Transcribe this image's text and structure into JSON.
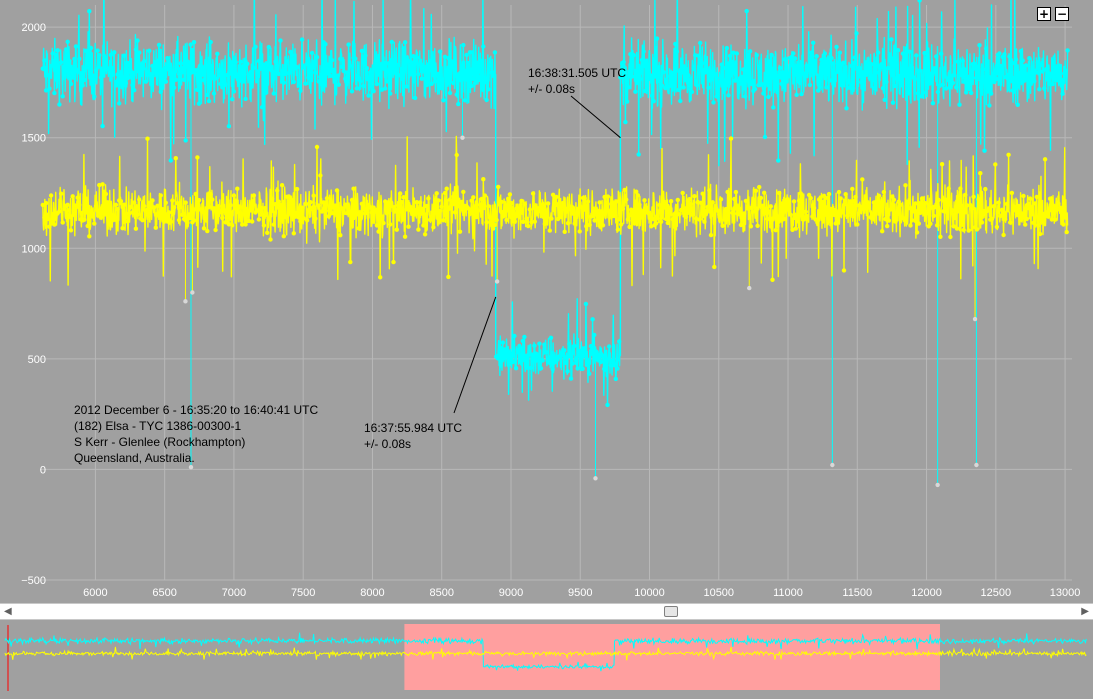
{
  "chart_data": {
    "type": "line",
    "x_ticks": [
      "6000",
      "6500",
      "7000",
      "7500",
      "8000",
      "8500",
      "9000",
      "9500",
      "10000",
      "10500",
      "11000",
      "11500",
      "12000",
      "12500",
      "13000"
    ],
    "y_ticks": [
      "2000",
      "1500",
      "1000",
      "500",
      "0",
      "−500"
    ],
    "xlim": [
      5600,
      13050
    ],
    "ylim": [
      -500,
      2100
    ],
    "series": [
      {
        "color": "#00ffff",
        "segments": [
          {
            "x_range": [
              5620,
              8890
            ],
            "mean": 1800,
            "spread": 200
          },
          {
            "x_range": [
              8890,
              9790
            ],
            "mean": 510,
            "spread": 130
          },
          {
            "x_range": [
              9790,
              13020
            ],
            "mean": 1790,
            "spread": 200
          }
        ],
        "dips": [
          [
            6690,
            10
          ],
          [
            8650,
            1500
          ],
          [
            9610,
            -40
          ],
          [
            11320,
            20
          ],
          [
            12080,
            -70
          ],
          [
            12360,
            20
          ]
        ]
      },
      {
        "color": "#ffff00",
        "segments": [
          {
            "x_range": [
              5620,
              13020
            ],
            "mean": 1170,
            "spread": 150
          }
        ],
        "dips": [
          [
            6650,
            760
          ],
          [
            6700,
            800
          ],
          [
            8900,
            850
          ],
          [
            10720,
            820
          ],
          [
            12350,
            680
          ]
        ]
      }
    ],
    "annotations": {
      "reappearance": {
        "line1": "16:38:31.505 UTC",
        "line2": "+/- 0.08s",
        "target": [
          9790,
          1500
        ]
      },
      "disappearance": {
        "line1": "16:37:55.984 UTC",
        "line2": "+/- 0.08s",
        "target": [
          8890,
          780
        ]
      },
      "info": [
        "2012 December 6 - 16:35:20 to 16:40:41 UTC",
        "(182) Elsa - TYC 1386-00300-1",
        "S Kerr - Glenlee (Rockhampton)",
        "Queensland, Australia."
      ]
    }
  },
  "controls": {
    "zoom_in": "+",
    "zoom_out": "−"
  },
  "scrollbar": {
    "left_arrow": "◀",
    "right_arrow": "▶"
  },
  "navigator": {
    "selected_fraction": [
      0.37,
      0.86
    ]
  },
  "colors": {
    "background": "#a0a0a0",
    "grid": "#b8b8b8",
    "navigator_selection": "#ff9f9f"
  }
}
